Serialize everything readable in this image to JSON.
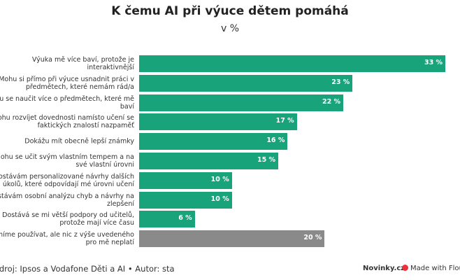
{
  "chart_data": {
    "type": "bar",
    "orientation": "horizontal",
    "title": "K čemu AI při výuce dětem pomáhá",
    "subtitle": "v %",
    "categories": [
      [
        "Výuka mě více baví, protože je",
        "interaktivnější"
      ],
      [
        "Mohu si přímo při výuce usnadnit práci v",
        "předmětech, které nemám rád/a"
      ],
      [
        "Mohu se naučit více o předmětech, které mě",
        "baví"
      ],
      [
        "Mohu rozvíjet dovednosti namísto učení se",
        "faktických znalostí nazpaměť"
      ],
      [
        "Dokážu mít obecně lepší známky"
      ],
      [
        "Mohu se učit svým vlastním tempem a na",
        "své vlastní úrovni"
      ],
      [
        "Dostávám personalizované návrhy dalších",
        "úkolů, které odpovídají mé úrovni učení"
      ],
      [
        "Dostávám osobní analýzu chyb a návrhy na",
        "zlepšení"
      ],
      [
        "Dostává se mi větší podpory od učitelů,",
        "protože mají více času"
      ],
      [
        "AI smíme používat, ale nic z výše uvedeného",
        "pro mě neplatí"
      ]
    ],
    "values": [
      33,
      23,
      22,
      17,
      16,
      15,
      10,
      10,
      6,
      20
    ],
    "value_labels": [
      "33 %",
      "23 %",
      "22 %",
      "17 %",
      "16 %",
      "15 %",
      "10 %",
      "10 %",
      "6 %",
      "20 %"
    ],
    "colors": [
      "#18a37b",
      "#18a37b",
      "#18a37b",
      "#18a37b",
      "#18a37b",
      "#18a37b",
      "#18a37b",
      "#18a37b",
      "#18a37b",
      "#8a8a8a"
    ],
    "xlim": [
      0,
      33
    ],
    "grid": false
  },
  "footer": {
    "source": "Zdroj: Ipsos a Vodafone Děti a AI • Autor: sta",
    "brand": "Novinky.cz",
    "made_with": "Made with Flourish"
  }
}
